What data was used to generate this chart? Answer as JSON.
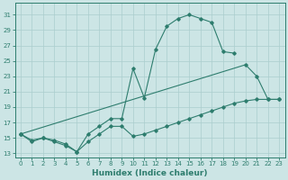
{
  "xlabel": "Humidex (Indice chaleur)",
  "x_values": [
    0,
    1,
    2,
    3,
    4,
    5,
    6,
    7,
    8,
    9,
    10,
    11,
    12,
    13,
    14,
    15,
    16,
    17,
    18,
    19,
    20,
    21,
    22,
    23
  ],
  "line_zigzag": [
    15.5,
    14.5,
    15.0,
    14.5,
    14.0,
    13.2,
    15.5,
    16.5,
    17.5,
    17.5,
    24.0,
    20.2,
    26.5,
    29.5,
    30.5,
    31.0,
    30.5,
    30.0,
    26.2,
    26.0,
    null,
    null,
    null,
    null
  ],
  "line_top_right": [
    null,
    null,
    null,
    null,
    null,
    null,
    null,
    null,
    null,
    null,
    null,
    null,
    null,
    null,
    null,
    31.0,
    null,
    null,
    null,
    null,
    24.5,
    23.0,
    20.0,
    20.0
  ],
  "line_lower": [
    15.5,
    null,
    null,
    null,
    null,
    null,
    null,
    null,
    null,
    null,
    null,
    null,
    null,
    null,
    null,
    null,
    null,
    null,
    null,
    null,
    24.5,
    null,
    null,
    null
  ],
  "line_trend1": [
    15.5,
    14.7,
    15.0,
    14.7,
    14.2,
    13.2,
    14.5,
    15.5,
    16.5,
    16.5,
    15.2,
    15.5,
    16.0,
    16.5,
    17.0,
    17.5,
    18.0,
    18.5,
    19.0,
    19.5,
    19.8,
    20.0,
    20.0,
    20.0
  ],
  "line_trend2": [
    15.5,
    null,
    null,
    null,
    null,
    null,
    null,
    null,
    null,
    null,
    null,
    null,
    null,
    null,
    null,
    null,
    null,
    null,
    null,
    null,
    24.5,
    23.0,
    20.0,
    20.0
  ],
  "line_color": "#2e7d6e",
  "bg_color": "#cce5e5",
  "grid_color": "#aacece",
  "ylim": [
    12.5,
    32.5
  ],
  "xlim": [
    -0.5,
    23.5
  ],
  "yticks": [
    13,
    15,
    17,
    19,
    21,
    23,
    25,
    27,
    29,
    31
  ],
  "xticks": [
    0,
    1,
    2,
    3,
    4,
    5,
    6,
    7,
    8,
    9,
    10,
    11,
    12,
    13,
    14,
    15,
    16,
    17,
    18,
    19,
    20,
    21,
    22,
    23
  ],
  "tick_fontsize": 5.0,
  "xlabel_fontsize": 6.5
}
